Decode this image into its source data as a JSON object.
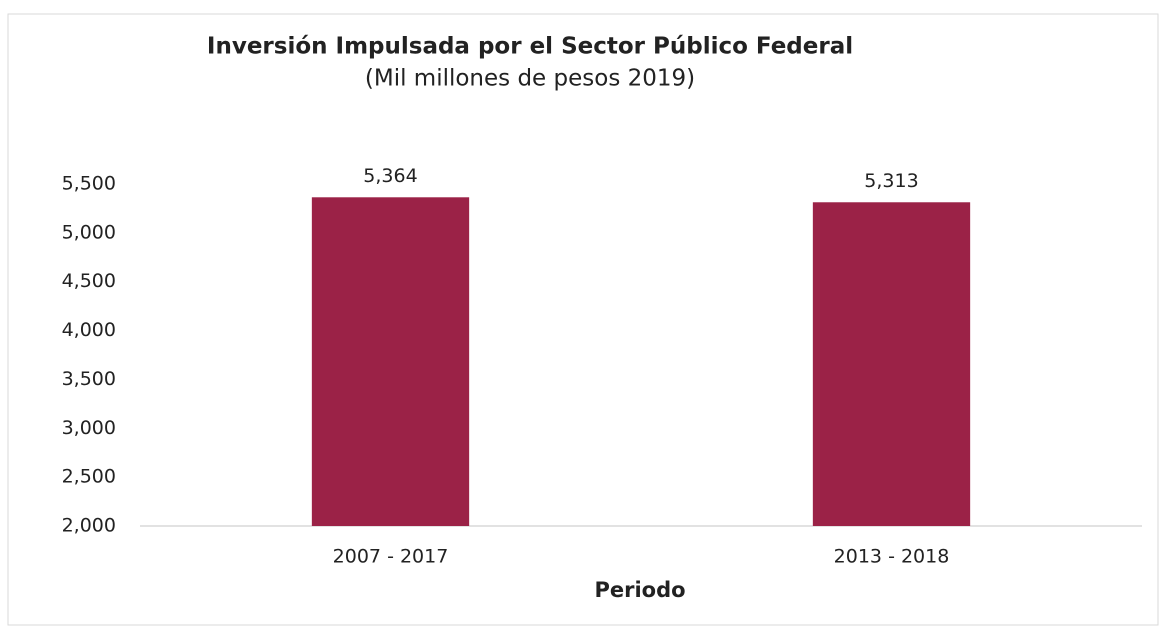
{
  "chart_data": {
    "type": "bar",
    "title": "Inversión Impulsada por el Sector Público Federal",
    "subtitle": "(Mil millones de pesos 2019)",
    "x_label": "Periodo",
    "categories": [
      "2007 - 2017",
      "2013 - 2018"
    ],
    "values": [
      5364,
      5313
    ],
    "value_labels": [
      "5,364",
      "5,313"
    ],
    "color": "#9b2247",
    "ylim": [
      2000,
      5500
    ],
    "yticks": [
      {
        "value": 2000,
        "label": "2,000"
      },
      {
        "value": 2500,
        "label": "2,500"
      },
      {
        "value": 3000,
        "label": "3,000"
      },
      {
        "value": 3500,
        "label": "3,500"
      },
      {
        "value": 4000,
        "label": "4,000"
      },
      {
        "value": 4500,
        "label": "4,500"
      },
      {
        "value": 5000,
        "label": "5,000"
      },
      {
        "value": 5500,
        "label": "5,500"
      }
    ],
    "grid": false
  }
}
